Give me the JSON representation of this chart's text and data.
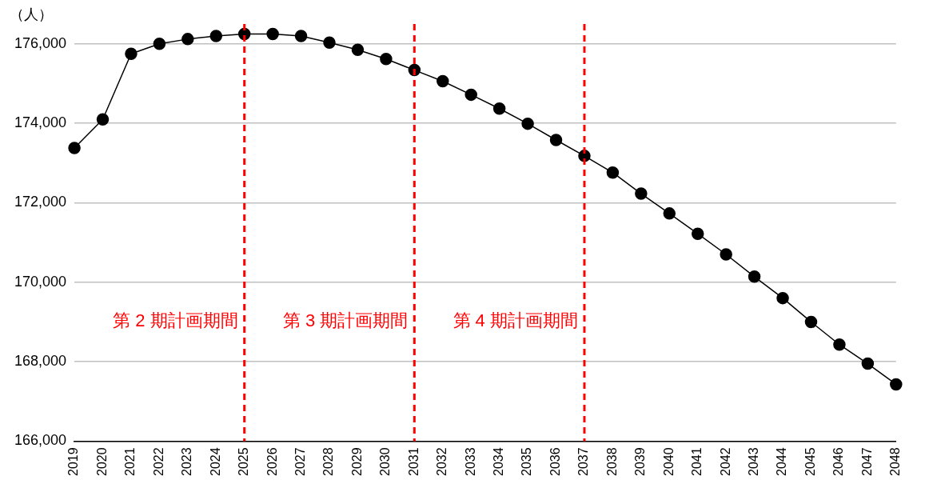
{
  "chart_data": {
    "type": "line",
    "ylabel": "（人）",
    "categories": [
      "2019",
      "2020",
      "2021",
      "2022",
      "2023",
      "2024",
      "2025",
      "2026",
      "2027",
      "2028",
      "2029",
      "2030",
      "2031",
      "2032",
      "2033",
      "2034",
      "2035",
      "2036",
      "2037",
      "2038",
      "2039",
      "2040",
      "2041",
      "2042",
      "2043",
      "2044",
      "2045",
      "2046",
      "2047",
      "2048"
    ],
    "series": [
      {
        "color": "#000000",
        "values": [
          173380,
          174100,
          175750,
          176000,
          176120,
          176200,
          176250,
          176250,
          176200,
          176030,
          175850,
          175620,
          175340,
          175060,
          174720,
          174370,
          173990,
          173580,
          173180,
          172760,
          172230,
          171730,
          171220,
          170700,
          170140,
          169600,
          169000,
          168430,
          167950,
          167430
        ]
      }
    ],
    "ylim": [
      166000,
      176500
    ],
    "yticks": [
      {
        "value": 166000,
        "label": "166,000"
      },
      {
        "value": 168000,
        "label": "168,000"
      },
      {
        "value": 170000,
        "label": "170,000"
      },
      {
        "value": 172000,
        "label": "172,000"
      },
      {
        "value": 174000,
        "label": "174,000"
      },
      {
        "value": 176000,
        "label": "176,000"
      }
    ],
    "ref_lines": [
      {
        "axis": "x",
        "value": "2025",
        "label": "第 2 期計画期間",
        "color": "#ff0000",
        "line_style": "dashed"
      },
      {
        "axis": "x",
        "value": "2031",
        "label": "第 3 期計画期間",
        "color": "#ff0000",
        "line_style": "dashed"
      },
      {
        "axis": "x",
        "value": "2037",
        "label": "第 4 期計画期間",
        "color": "#ff0000",
        "line_style": "dashed"
      }
    ],
    "grid": "y",
    "legend": false,
    "marker": "circle",
    "line_style": "solid"
  }
}
